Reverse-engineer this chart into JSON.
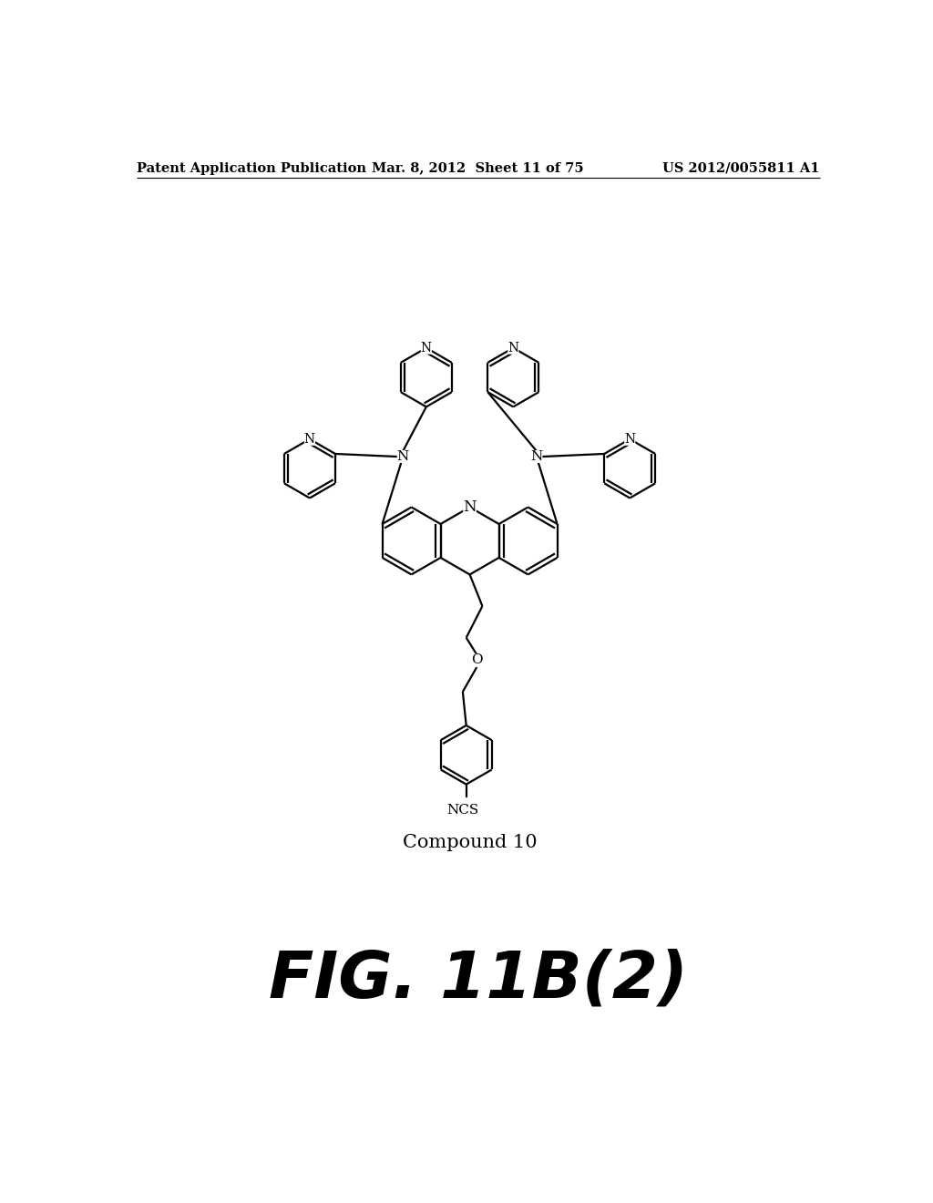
{
  "background_color": "#ffffff",
  "header_left": "Patent Application Publication",
  "header_mid": "Mar. 8, 2012  Sheet 11 of 75",
  "header_right": "US 2012/0055811 A1",
  "fig_label": "FIG. 11B(2)",
  "compound_label": "Compound 10",
  "line_color": "#000000",
  "line_width": 1.6,
  "text_fontsize": 11,
  "header_fontsize": 10.5,
  "fig_fontsize": 52,
  "compound_fontsize": 15
}
